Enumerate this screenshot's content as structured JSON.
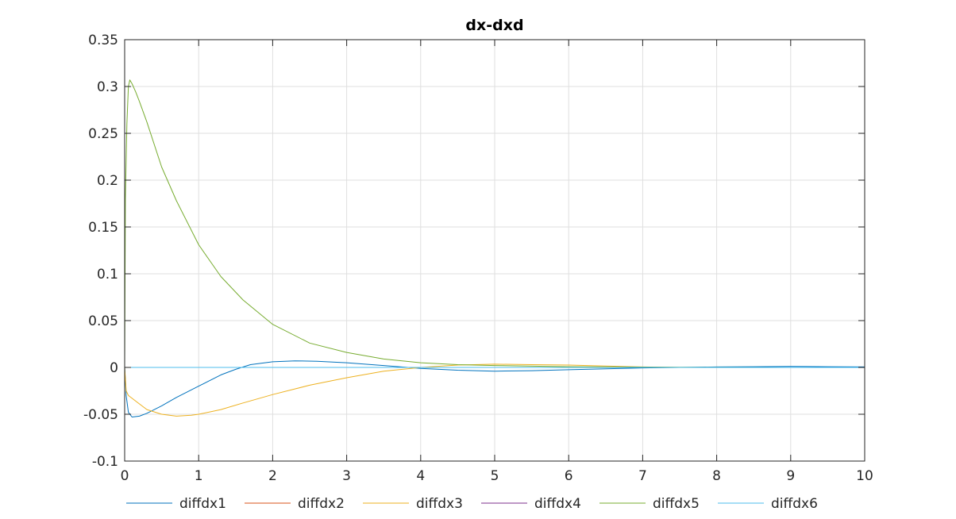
{
  "chart_data": {
    "type": "line",
    "title": "dx-dxd",
    "xlabel": "",
    "ylabel": "",
    "xlim": [
      0,
      10
    ],
    "ylim": [
      -0.1,
      0.35
    ],
    "xticks": [
      "0",
      "1",
      "2",
      "3",
      "4",
      "5",
      "6",
      "7",
      "8",
      "9",
      "10"
    ],
    "yticks": [
      "-0.1",
      "-0.05",
      "0",
      "0.05",
      "0.1",
      "0.15",
      "0.2",
      "0.25",
      "0.3",
      "0.35"
    ],
    "grid": true,
    "legend_position": "bottom",
    "series": [
      {
        "name": "diffdx1",
        "color": "#0072BD",
        "points": [
          [
            0,
            0
          ],
          [
            0.02,
            -0.03
          ],
          [
            0.05,
            -0.048
          ],
          [
            0.1,
            -0.053
          ],
          [
            0.2,
            -0.052
          ],
          [
            0.3,
            -0.049
          ],
          [
            0.5,
            -0.041
          ],
          [
            0.7,
            -0.032
          ],
          [
            1.0,
            -0.02
          ],
          [
            1.3,
            -0.008
          ],
          [
            1.5,
            -0.002
          ],
          [
            1.7,
            0.003
          ],
          [
            2.0,
            0.006
          ],
          [
            2.3,
            0.007
          ],
          [
            2.6,
            0.0065
          ],
          [
            3.0,
            0.005
          ],
          [
            3.5,
            0.002
          ],
          [
            4.0,
            -0.001
          ],
          [
            4.5,
            -0.003
          ],
          [
            5.0,
            -0.004
          ],
          [
            5.5,
            -0.0035
          ],
          [
            6.0,
            -0.0025
          ],
          [
            6.5,
            -0.0015
          ],
          [
            7.0,
            -0.0005
          ],
          [
            7.5,
            0
          ],
          [
            8.0,
            0.0005
          ],
          [
            8.5,
            0.0008
          ],
          [
            9.0,
            0.001
          ],
          [
            9.5,
            0.0008
          ],
          [
            10.0,
            0.0005
          ]
        ]
      },
      {
        "name": "diffdx2",
        "color": "#D95319",
        "points": [
          [
            0,
            0
          ],
          [
            2,
            0
          ],
          [
            4,
            0
          ],
          [
            6,
            0
          ],
          [
            8,
            0
          ],
          [
            10,
            0
          ]
        ]
      },
      {
        "name": "diffdx3",
        "color": "#EDB120",
        "points": [
          [
            0,
            0
          ],
          [
            0.02,
            -0.025
          ],
          [
            0.05,
            -0.03
          ],
          [
            0.1,
            -0.033
          ],
          [
            0.2,
            -0.039
          ],
          [
            0.3,
            -0.045
          ],
          [
            0.5,
            -0.05
          ],
          [
            0.7,
            -0.052
          ],
          [
            0.9,
            -0.051
          ],
          [
            1.0,
            -0.05
          ],
          [
            1.3,
            -0.045
          ],
          [
            1.6,
            -0.038
          ],
          [
            2.0,
            -0.029
          ],
          [
            2.5,
            -0.019
          ],
          [
            3.0,
            -0.011
          ],
          [
            3.5,
            -0.004
          ],
          [
            4.0,
            0
          ],
          [
            4.5,
            0.0025
          ],
          [
            5.0,
            0.0035
          ],
          [
            5.5,
            0.003
          ],
          [
            6.0,
            0.0025
          ],
          [
            6.5,
            0.0015
          ],
          [
            7.0,
            0.0005
          ],
          [
            7.5,
            0
          ],
          [
            8.0,
            0
          ],
          [
            9.0,
            0
          ],
          [
            10.0,
            0
          ]
        ]
      },
      {
        "name": "diffdx4",
        "color": "#7E2F8E",
        "points": [
          [
            0,
            0
          ],
          [
            2,
            0
          ],
          [
            4,
            0
          ],
          [
            6,
            0
          ],
          [
            8,
            0
          ],
          [
            10,
            0
          ]
        ]
      },
      {
        "name": "diffdx5",
        "color": "#77AC30",
        "points": [
          [
            0,
            0
          ],
          [
            0.01,
            0.18
          ],
          [
            0.03,
            0.26
          ],
          [
            0.05,
            0.3
          ],
          [
            0.07,
            0.307
          ],
          [
            0.1,
            0.303
          ],
          [
            0.15,
            0.294
          ],
          [
            0.2,
            0.284
          ],
          [
            0.3,
            0.262
          ],
          [
            0.5,
            0.214
          ],
          [
            0.7,
            0.178
          ],
          [
            1.0,
            0.131
          ],
          [
            1.3,
            0.097
          ],
          [
            1.6,
            0.072
          ],
          [
            2.0,
            0.046
          ],
          [
            2.5,
            0.026
          ],
          [
            3.0,
            0.016
          ],
          [
            3.5,
            0.009
          ],
          [
            4.0,
            0.005
          ],
          [
            4.5,
            0.003
          ],
          [
            5.0,
            0.002
          ],
          [
            6.0,
            0.0008
          ],
          [
            7.0,
            0.0003
          ],
          [
            8.0,
            0.0001
          ],
          [
            9.0,
            0
          ],
          [
            10.0,
            0
          ]
        ]
      },
      {
        "name": "diffdx6",
        "color": "#4DBEEE",
        "points": [
          [
            0,
            0
          ],
          [
            2,
            0
          ],
          [
            4,
            0
          ],
          [
            6,
            0
          ],
          [
            8,
            0
          ],
          [
            10,
            0
          ]
        ]
      }
    ]
  }
}
